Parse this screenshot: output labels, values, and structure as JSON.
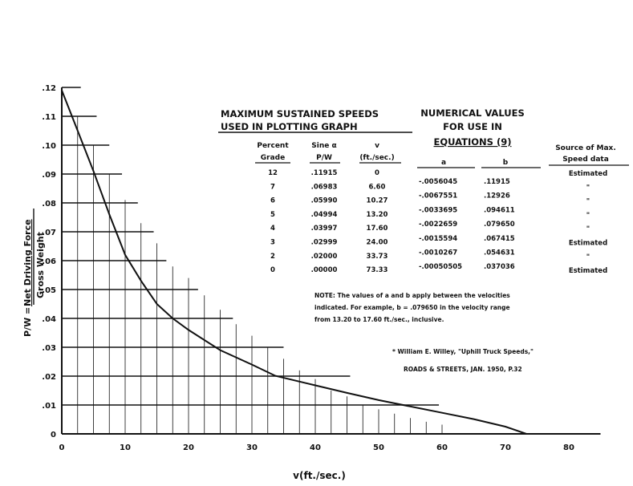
{
  "chart_data": {
    "type": "line",
    "xlabel": "v(ft./sec.)",
    "ylabel_prefix": "P/W =",
    "ylabel_numerator": "Net Driving Force",
    "ylabel_denominator": "Gross Weight",
    "xlim": [
      0,
      85
    ],
    "ylim": [
      0,
      0.12
    ],
    "x_ticks": [
      "0",
      "10",
      "20",
      "30",
      "40",
      "50",
      "60",
      "70",
      "80"
    ],
    "x_tick_values": [
      0,
      10,
      20,
      30,
      40,
      50,
      60,
      70,
      80
    ],
    "y_ticks": [
      ".12",
      ".11",
      ".10",
      ".09",
      ".08",
      ".07",
      ".06",
      ".05",
      ".04",
      ".03",
      ".02",
      ".01",
      "0"
    ],
    "y_tick_values": [
      0.12,
      0.11,
      0.1,
      0.09,
      0.08,
      0.07,
      0.06,
      0.05,
      0.04,
      0.03,
      0.02,
      0.01,
      0
    ],
    "h_guide_end_x": [
      3,
      5.5,
      7.5,
      9.5,
      12,
      14.5,
      16.5,
      21.5,
      27,
      35,
      45.5,
      59.5
    ],
    "v_guide_top_y": [
      0.11,
      0.1,
      0.09,
      0.081,
      0.073,
      0.066,
      0.058,
      0.054,
      0.048,
      0.043,
      0.038,
      0.034,
      0.03,
      0.026,
      0.022,
      0.019,
      0.015,
      0.013,
      0.01,
      0.0085,
      0.007,
      0.0055,
      0.0042,
      0.0032
    ],
    "series": [
      {
        "x": [
          0,
          2.5,
          5,
          7.5,
          10,
          12.5,
          15,
          17.5,
          20,
          25,
          30,
          33.7,
          40,
          45,
          50,
          55,
          60,
          65,
          70,
          73.3
        ],
        "y": [
          0.119,
          0.105,
          0.091,
          0.076,
          0.062,
          0.053,
          0.045,
          0.04,
          0.036,
          0.029,
          0.024,
          0.0201,
          0.0168,
          0.0142,
          0.0117,
          0.0095,
          0.0073,
          0.0051,
          0.0025,
          0.0
        ]
      }
    ]
  },
  "table_left": {
    "title_line1": "MAXIMUM SUSTAINED SPEEDS",
    "title_line2": "USED IN PLOTTING GRAPH",
    "col1_head1": "Percent",
    "col1_head2": "Grade",
    "col2_head1": "Sine α",
    "col2_head2": "P/W",
    "col3_head1": "v",
    "col3_head2": "(ft./sec.)",
    "rows": [
      [
        "12",
        ".11915",
        "0"
      ],
      [
        "7",
        ".06983",
        "6.60"
      ],
      [
        "6",
        ".05990",
        "10.27"
      ],
      [
        "5",
        ".04994",
        "13.20"
      ],
      [
        "4",
        ".03997",
        "17.60"
      ],
      [
        "3",
        ".02999",
        "24.00"
      ],
      [
        "2",
        ".02000",
        "33.73"
      ],
      [
        "0",
        ".00000",
        "73.33"
      ]
    ]
  },
  "table_right": {
    "title_line1": "NUMERICAL VALUES",
    "title_line2": "FOR USE IN",
    "title_line3": "EQUATIONS (9)",
    "col_a": "a",
    "col_b": "b",
    "source_head1": "Source of Max.",
    "source_head2": "Speed data",
    "rows": [
      [
        "-.0056045",
        ".11915"
      ],
      [
        "-.0067551",
        ".12926"
      ],
      [
        "-.0033695",
        ".094611"
      ],
      [
        "-.0022659",
        ".079650"
      ],
      [
        "-.0015594",
        ".067415"
      ],
      [
        "-.0010267",
        ".054631"
      ],
      [
        "-.00050505",
        ".037036"
      ]
    ],
    "sources": [
      "Estimated",
      "\"",
      "\"",
      "\"",
      "\"",
      "Estimated",
      "\"",
      "Estimated"
    ]
  },
  "note": {
    "line1": "NOTE: The values of a and b apply between the velocities",
    "line2": "indicated. For example, b = .079650 in the velocity range",
    "line3": "from 13.20 to 17.60 ft./sec., inclusive."
  },
  "citation": {
    "line1": "* William E. Willey, \"Uphill Truck Speeds,\"",
    "line2": "ROADS & STREETS, JAN. 1950, P.32"
  }
}
